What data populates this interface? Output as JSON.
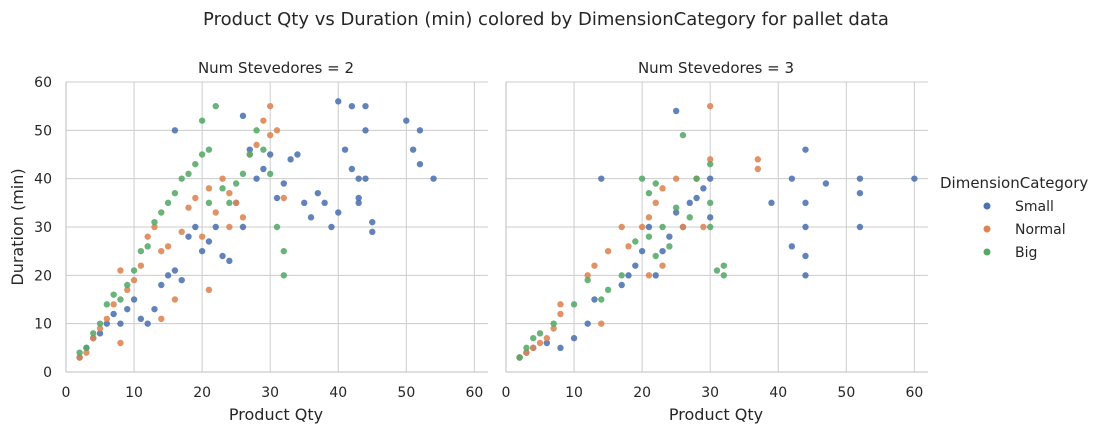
{
  "chart_data": {
    "type": "scatter",
    "title": "Product Qty vs Duration (min) colored by DimensionCategory for pallet data",
    "xlabel": "Product Qty",
    "ylabel": "Duration (min)",
    "xlim": [
      0,
      62
    ],
    "ylim": [
      0,
      60
    ],
    "xticks": [
      "0",
      "10",
      "20",
      "30",
      "40",
      "50",
      "60"
    ],
    "yticks": [
      "0",
      "10",
      "20",
      "30",
      "40",
      "50",
      "60"
    ],
    "grid": true,
    "legend": {
      "title": "DimensionCategory",
      "placement": "right",
      "entries": [
        {
          "label": "Small",
          "color": "#4c72b0"
        },
        {
          "label": "Normal",
          "color": "#dd8452"
        },
        {
          "label": "Big",
          "color": "#55a868"
        }
      ]
    },
    "facets": [
      {
        "title": "Num Stevedores = 2",
        "series": [
          {
            "name": "Small",
            "color": "#4c72b0",
            "points": [
              [
                2,
                3
              ],
              [
                3,
                5
              ],
              [
                4,
                7
              ],
              [
                5,
                8
              ],
              [
                6,
                10
              ],
              [
                7,
                12
              ],
              [
                8,
                10
              ],
              [
                9,
                13
              ],
              [
                10,
                15
              ],
              [
                11,
                11
              ],
              [
                12,
                10
              ],
              [
                13,
                13
              ],
              [
                14,
                18
              ],
              [
                15,
                20
              ],
              [
                16,
                21
              ],
              [
                17,
                19
              ],
              [
                16,
                50
              ],
              [
                18,
                28
              ],
              [
                19,
                30
              ],
              [
                20,
                25
              ],
              [
                21,
                27
              ],
              [
                22,
                30
              ],
              [
                23,
                24
              ],
              [
                24,
                23
              ],
              [
                25,
                35
              ],
              [
                26,
                30
              ],
              [
                27,
                46
              ],
              [
                28,
                40
              ],
              [
                29,
                42
              ],
              [
                30,
                45
              ],
              [
                31,
                36
              ],
              [
                32,
                39
              ],
              [
                33,
                44
              ],
              [
                34,
                45
              ],
              [
                35,
                35
              ],
              [
                36,
                32
              ],
              [
                37,
                37
              ],
              [
                38,
                35
              ],
              [
                39,
                30
              ],
              [
                40,
                33
              ],
              [
                41,
                46
              ],
              [
                42,
                42
              ],
              [
                43,
                35
              ],
              [
                44,
                40
              ],
              [
                44,
                50
              ],
              [
                45,
                29
              ],
              [
                50,
                52
              ],
              [
                51,
                46
              ],
              [
                52,
                50
              ],
              [
                52,
                43
              ],
              [
                54,
                40
              ],
              [
                40,
                56
              ],
              [
                42,
                55
              ],
              [
                44,
                55
              ],
              [
                26,
                53
              ],
              [
                43,
                40
              ],
              [
                43,
                36
              ],
              [
                45,
                31
              ]
            ]
          },
          {
            "name": "Normal",
            "color": "#dd8452",
            "points": [
              [
                2,
                3
              ],
              [
                3,
                4
              ],
              [
                4,
                7
              ],
              [
                5,
                9
              ],
              [
                6,
                11
              ],
              [
                7,
                14
              ],
              [
                8,
                21
              ],
              [
                8,
                6
              ],
              [
                9,
                17
              ],
              [
                10,
                19
              ],
              [
                11,
                22
              ],
              [
                12,
                28
              ],
              [
                13,
                30
              ],
              [
                14,
                25
              ],
              [
                15,
                26
              ],
              [
                16,
                15
              ],
              [
                17,
                29
              ],
              [
                18,
                34
              ],
              [
                19,
                36
              ],
              [
                20,
                28
              ],
              [
                21,
                38
              ],
              [
                22,
                33
              ],
              [
                23,
                40
              ],
              [
                24,
                37
              ],
              [
                25,
                35
              ],
              [
                26,
                32
              ],
              [
                27,
                45
              ],
              [
                28,
                47
              ],
              [
                29,
                52
              ],
              [
                30,
                55
              ],
              [
                31,
                50
              ],
              [
                32,
                36
              ],
              [
                30,
                49
              ],
              [
                24,
                30
              ],
              [
                21,
                17
              ],
              [
                14,
                11
              ]
            ]
          },
          {
            "name": "Big",
            "color": "#55a868",
            "points": [
              [
                2,
                4
              ],
              [
                3,
                5
              ],
              [
                4,
                8
              ],
              [
                5,
                10
              ],
              [
                6,
                14
              ],
              [
                7,
                16
              ],
              [
                8,
                15
              ],
              [
                9,
                18
              ],
              [
                10,
                21
              ],
              [
                11,
                25
              ],
              [
                12,
                26
              ],
              [
                13,
                31
              ],
              [
                14,
                33
              ],
              [
                15,
                35
              ],
              [
                16,
                37
              ],
              [
                17,
                40
              ],
              [
                18,
                41
              ],
              [
                19,
                43
              ],
              [
                20,
                45
              ],
              [
                21,
                46
              ],
              [
                22,
                55
              ],
              [
                23,
                38
              ],
              [
                24,
                35
              ],
              [
                25,
                39
              ],
              [
                26,
                41
              ],
              [
                27,
                45
              ],
              [
                28,
                50
              ],
              [
                29,
                46
              ],
              [
                30,
                41
              ],
              [
                31,
                30
              ],
              [
                32,
                20
              ],
              [
                32,
                25
              ],
              [
                20,
                52
              ],
              [
                21,
                35
              ]
            ]
          }
        ]
      },
      {
        "title": "Num Stevedores = 3",
        "series": [
          {
            "name": "Small",
            "color": "#4c72b0",
            "points": [
              [
                2,
                3
              ],
              [
                3,
                4
              ],
              [
                4,
                5
              ],
              [
                6,
                6
              ],
              [
                8,
                5
              ],
              [
                10,
                7
              ],
              [
                12,
                10
              ],
              [
                13,
                15
              ],
              [
                14,
                40
              ],
              [
                17,
                18
              ],
              [
                18,
                20
              ],
              [
                19,
                22
              ],
              [
                20,
                25
              ],
              [
                21,
                30
              ],
              [
                22,
                20
              ],
              [
                23,
                25
              ],
              [
                24,
                28
              ],
              [
                25,
                33
              ],
              [
                26,
                30
              ],
              [
                27,
                35
              ],
              [
                28,
                36
              ],
              [
                29,
                38
              ],
              [
                30,
                40
              ],
              [
                25,
                54
              ],
              [
                30,
                32
              ],
              [
                39,
                35
              ],
              [
                42,
                40
              ],
              [
                42,
                26
              ],
              [
                44,
                46
              ],
              [
                44,
                30
              ],
              [
                44,
                24
              ],
              [
                44,
                20
              ],
              [
                44,
                35
              ],
              [
                47,
                39
              ],
              [
                52,
                40
              ],
              [
                52,
                37
              ],
              [
                52,
                30
              ],
              [
                60,
                40
              ]
            ]
          },
          {
            "name": "Normal",
            "color": "#dd8452",
            "points": [
              [
                2,
                3
              ],
              [
                3,
                4
              ],
              [
                4,
                5
              ],
              [
                5,
                6
              ],
              [
                6,
                7
              ],
              [
                7,
                9
              ],
              [
                8,
                12
              ],
              [
                8,
                14
              ],
              [
                12,
                20
              ],
              [
                13,
                22
              ],
              [
                14,
                10
              ],
              [
                15,
                25
              ],
              [
                17,
                30
              ],
              [
                18,
                26
              ],
              [
                20,
                30
              ],
              [
                21,
                32
              ],
              [
                22,
                35
              ],
              [
                23,
                38
              ],
              [
                25,
                40
              ],
              [
                26,
                30
              ],
              [
                28,
                40
              ],
              [
                29,
                30
              ],
              [
                30,
                55
              ],
              [
                30,
                44
              ],
              [
                37,
                44
              ],
              [
                37,
                42
              ],
              [
                21,
                20
              ],
              [
                23,
                22
              ]
            ]
          },
          {
            "name": "Big",
            "color": "#55a868",
            "points": [
              [
                2,
                3
              ],
              [
                3,
                5
              ],
              [
                4,
                7
              ],
              [
                5,
                8
              ],
              [
                7,
                10
              ],
              [
                10,
                14
              ],
              [
                12,
                19
              ],
              [
                14,
                15
              ],
              [
                15,
                17
              ],
              [
                17,
                20
              ],
              [
                19,
                27
              ],
              [
                20,
                40
              ],
              [
                21,
                37
              ],
              [
                22,
                39
              ],
              [
                23,
                30
              ],
              [
                24,
                26
              ],
              [
                25,
                34
              ],
              [
                26,
                49
              ],
              [
                27,
                32
              ],
              [
                28,
                40
              ],
              [
                30,
                43
              ],
              [
                30,
                35
              ],
              [
                31,
                21
              ],
              [
                32,
                20
              ],
              [
                32,
                22
              ],
              [
                21,
                28
              ],
              [
                22,
                24
              ],
              [
                30,
                30
              ]
            ]
          }
        ]
      }
    ]
  }
}
